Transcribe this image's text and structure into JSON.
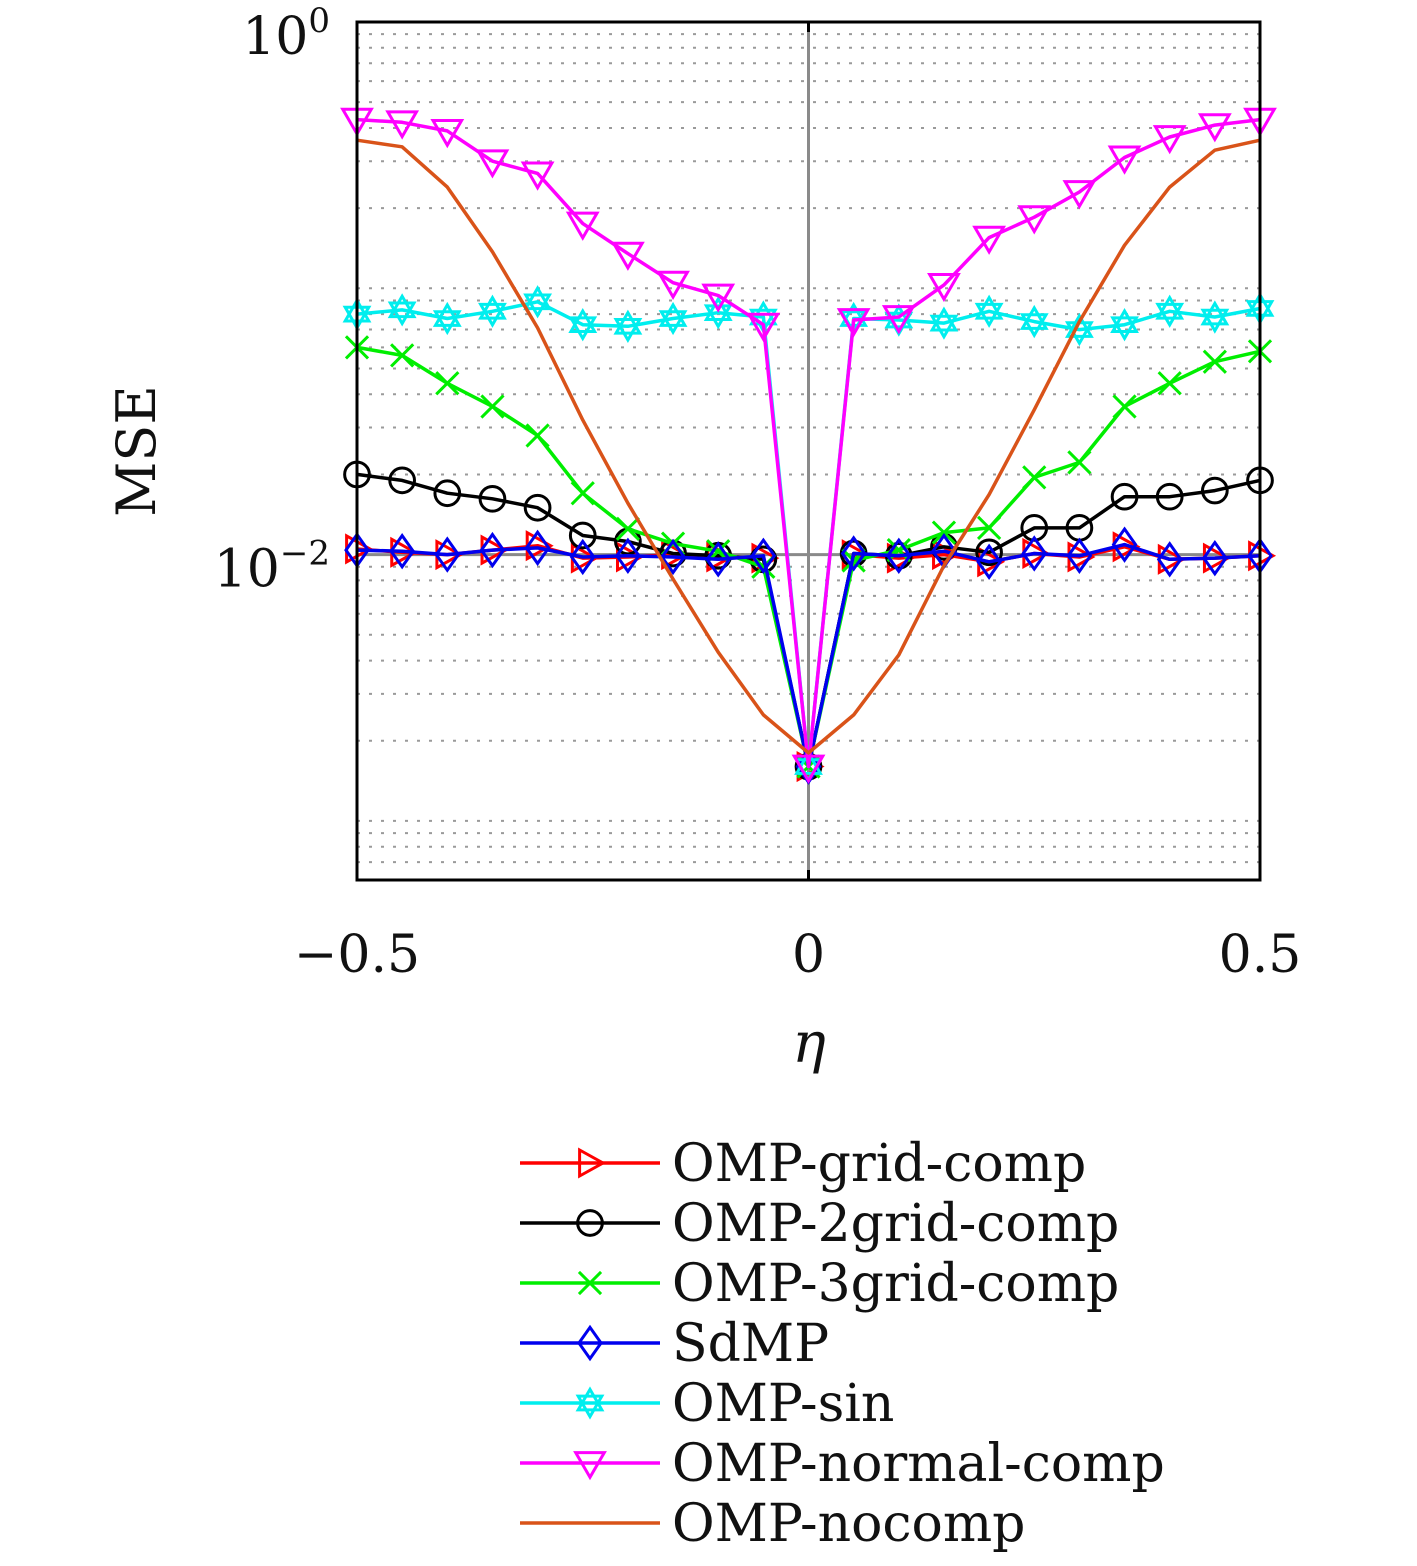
{
  "chart_data": {
    "type": "line",
    "xlabel": "η",
    "ylabel": "MSE",
    "xlim": [
      -0.5,
      0.5
    ],
    "ylim": [
      0.0006,
      1
    ],
    "yscale": "log",
    "grid": "dotted horizontal",
    "legend_position": "below",
    "x_ticks": [
      {
        "value": -0.5,
        "label": "−0.5"
      },
      {
        "value": 0,
        "label": "0"
      },
      {
        "value": 0.5,
        "label": "0.5"
      }
    ],
    "y_ticks": [
      {
        "value": 1,
        "base": "10",
        "exp": "0"
      },
      {
        "value": 0.01,
        "base": "10",
        "exp": "−2"
      }
    ],
    "x": [
      -0.5,
      -0.45,
      -0.4,
      -0.35,
      -0.3,
      -0.25,
      -0.2,
      -0.15,
      -0.1,
      -0.05,
      0,
      0.05,
      0.1,
      0.15,
      0.2,
      0.25,
      0.3,
      0.35,
      0.4,
      0.45,
      0.5
    ],
    "series": [
      {
        "name": "OMP-grid-comp",
        "color": "#ff0000",
        "marker": "triangle-right",
        "values": [
          0.0105,
          0.0102,
          0.01,
          0.0104,
          0.0108,
          0.0097,
          0.0098,
          0.01,
          0.0098,
          0.0097,
          0.0016,
          0.01,
          0.0097,
          0.01,
          0.0094,
          0.0101,
          0.0098,
          0.0107,
          0.0096,
          0.0097,
          0.0099
        ]
      },
      {
        "name": "OMP-2grid-comp",
        "color": "#000000",
        "marker": "circle",
        "values": [
          0.02,
          0.019,
          0.017,
          0.0162,
          0.015,
          0.0118,
          0.0112,
          0.0101,
          0.0099,
          0.0096,
          0.0016,
          0.0101,
          0.0099,
          0.0107,
          0.0102,
          0.0126,
          0.0126,
          0.0165,
          0.0165,
          0.0174,
          0.019
        ]
      },
      {
        "name": "OMP-3grid-comp",
        "color": "#00ee00",
        "marker": "x",
        "values": [
          0.06,
          0.056,
          0.044,
          0.036,
          0.028,
          0.017,
          0.0125,
          0.011,
          0.0103,
          0.009,
          0.0016,
          0.0095,
          0.0104,
          0.0121,
          0.0126,
          0.0195,
          0.0222,
          0.036,
          0.044,
          0.053,
          0.058
        ]
      },
      {
        "name": "SdMP",
        "color": "#0000ee",
        "marker": "diamond",
        "values": [
          0.0104,
          0.0103,
          0.01,
          0.0104,
          0.0106,
          0.0098,
          0.0099,
          0.0098,
          0.0096,
          0.0099,
          0.0016,
          0.0101,
          0.0099,
          0.0103,
          0.0094,
          0.0101,
          0.0099,
          0.0109,
          0.0096,
          0.0097,
          0.0099
        ]
      },
      {
        "name": "OMP-sin",
        "color": "#00eeee",
        "marker": "star",
        "values": [
          0.08,
          0.083,
          0.077,
          0.082,
          0.089,
          0.073,
          0.072,
          0.077,
          0.081,
          0.078,
          0.0016,
          0.077,
          0.076,
          0.074,
          0.082,
          0.075,
          0.07,
          0.073,
          0.082,
          0.078,
          0.084
        ]
      },
      {
        "name": "OMP-normal-comp",
        "color": "#ff00ff",
        "marker": "triangle-down",
        "values": [
          0.43,
          0.42,
          0.39,
          0.3,
          0.27,
          0.175,
          0.135,
          0.105,
          0.094,
          0.073,
          0.0016,
          0.076,
          0.078,
          0.103,
          0.155,
          0.185,
          0.23,
          0.31,
          0.37,
          0.41,
          0.43
        ]
      },
      {
        "name": "OMP-nocomp",
        "color": "#d95319",
        "marker": "none",
        "values": [
          0.36,
          0.34,
          0.24,
          0.137,
          0.071,
          0.032,
          0.0156,
          0.0081,
          0.0043,
          0.0025,
          0.0018,
          0.0025,
          0.0042,
          0.0091,
          0.0168,
          0.035,
          0.075,
          0.145,
          0.24,
          0.33,
          0.36
        ]
      }
    ]
  }
}
